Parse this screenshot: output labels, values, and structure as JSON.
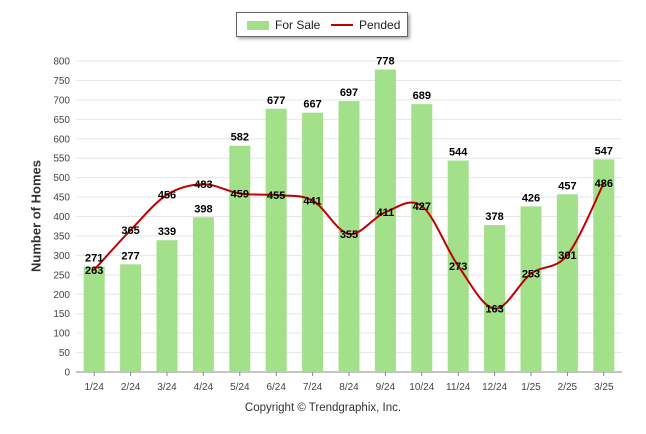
{
  "colors": {
    "bar": "#a3e08a",
    "line": "#c00000",
    "grid": "#e6e6e6",
    "axis": "#888888",
    "text": "#444444"
  },
  "footer": {
    "copyright": "Copyright © Trendgraphix, Inc."
  },
  "chart_data": {
    "type": "bar",
    "categories": [
      "1/24",
      "2/24",
      "3/24",
      "4/24",
      "5/24",
      "6/24",
      "7/24",
      "8/24",
      "9/24",
      "10/24",
      "11/24",
      "12/24",
      "1/25",
      "2/25",
      "3/25"
    ],
    "series": [
      {
        "name": "For Sale",
        "type": "bar",
        "values": [
          271,
          277,
          339,
          398,
          582,
          677,
          667,
          697,
          778,
          689,
          544,
          378,
          426,
          457,
          547
        ]
      },
      {
        "name": "Pended",
        "type": "line",
        "values": [
          263,
          365,
          456,
          483,
          459,
          455,
          441,
          355,
          411,
          427,
          273,
          163,
          253,
          301,
          486
        ]
      }
    ],
    "xlabel": "",
    "ylabel": "Number of Homes",
    "ylim": [
      0,
      800
    ],
    "yticks": [
      0,
      50,
      100,
      150,
      200,
      250,
      300,
      350,
      400,
      450,
      500,
      550,
      600,
      650,
      700,
      750,
      800
    ],
    "grid": true,
    "legend_position": "top-center"
  }
}
